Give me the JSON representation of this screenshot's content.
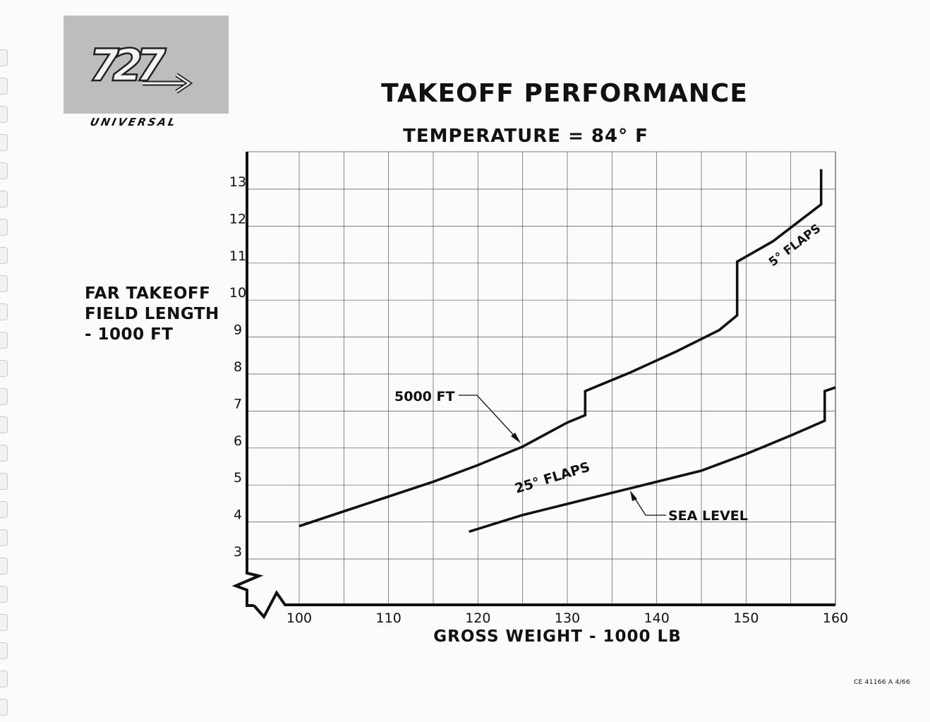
{
  "logo": {
    "model": "727",
    "brand": "UNIVERSAL"
  },
  "footer_code": "CE 41166 A 4/66",
  "chart_data": {
    "type": "line",
    "title": "TAKEOFF PERFORMANCE",
    "subtitle": "TEMPERATURE = 84° F",
    "xlabel": "GROSS WEIGHT - 1000 LB",
    "ylabel_lines": [
      "FAR TAKEOFF",
      "FIELD LENGTH",
      "- 1000 FT"
    ],
    "xlim": [
      100,
      160
    ],
    "ylim": [
      2.5,
      13.5
    ],
    "x_ticks": [
      100,
      110,
      120,
      130,
      140,
      150,
      160
    ],
    "y_ticks": [
      3,
      4,
      5,
      6,
      7,
      8,
      9,
      10,
      11,
      12,
      13
    ],
    "grid": true,
    "series": [
      {
        "name": "5000 FT",
        "x": [
          100,
          105,
          110,
          115,
          120,
          125,
          130,
          132,
          132,
          137,
          142,
          147,
          149,
          149,
          153,
          158.4,
          158.4
        ],
        "y": [
          3.85,
          4.25,
          4.65,
          5.05,
          5.5,
          6.0,
          6.65,
          6.85,
          7.5,
          8.0,
          8.55,
          9.15,
          9.55,
          11.0,
          11.55,
          12.55,
          13.5
        ]
      },
      {
        "name": "SEA LEVEL",
        "x": [
          119,
          125,
          130,
          135,
          140,
          145,
          150,
          155,
          158.8,
          158.8,
          160
        ],
        "y": [
          3.7,
          4.15,
          4.45,
          4.75,
          5.05,
          5.35,
          5.8,
          6.3,
          6.7,
          7.5,
          7.6
        ]
      }
    ],
    "annotations": [
      {
        "text": "5000 FT",
        "target": "5000 FT"
      },
      {
        "text": "SEA LEVEL",
        "target": "SEA LEVEL"
      },
      {
        "text": "25° FLAPS",
        "target": "SEA LEVEL"
      },
      {
        "text": "5° FLAPS",
        "target": "5000 FT"
      }
    ]
  }
}
